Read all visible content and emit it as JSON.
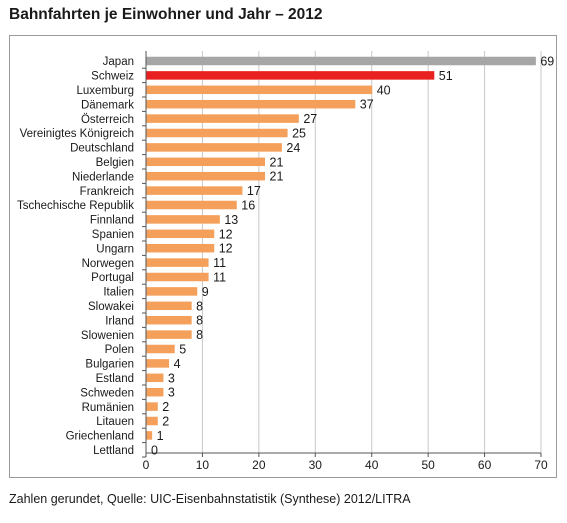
{
  "chart_data": {
    "type": "bar",
    "orientation": "horizontal",
    "title": "Bahnfahrten je Einwohner und Jahr – 2012",
    "categories": [
      "Japan",
      "Schweiz",
      "Luxemburg",
      "Dänemark",
      "Österreich",
      "Vereinigtes Königreich",
      "Deutschland",
      "Belgien",
      "Niederlande",
      "Frankreich",
      "Tschechische Republik",
      "Finnland",
      "Spanien",
      "Ungarn",
      "Norwegen",
      "Portugal",
      "Italien",
      "Slowakei",
      "Irland",
      "Slowenien",
      "Polen",
      "Bulgarien",
      "Estland",
      "Schweden",
      "Rumänien",
      "Litauen",
      "Griechenland",
      "Lettland"
    ],
    "values": [
      69,
      51,
      40,
      37,
      27,
      25,
      24,
      21,
      21,
      17,
      16,
      13,
      12,
      12,
      11,
      11,
      9,
      8,
      8,
      8,
      5,
      4,
      3,
      3,
      2,
      2,
      1,
      0
    ],
    "data_labels": [
      "69",
      "51",
      "40",
      "37",
      "27",
      "25",
      "24",
      "21",
      "21",
      "17",
      "16",
      "13",
      "12",
      "12",
      "11",
      "11",
      "9",
      "8",
      "8",
      "8",
      "5",
      "4",
      "3",
      "3",
      "2",
      "2",
      "1",
      "0"
    ],
    "xlim": [
      0,
      70
    ],
    "xticks": [
      "0",
      "10",
      "20",
      "30",
      "40",
      "50",
      "60",
      "70"
    ],
    "xlabel": "",
    "ylabel": "",
    "grid": "vertical",
    "legend": "none",
    "colors": {
      "default": "#f5a05a",
      "highlight_japan": "#a6a6a6",
      "highlight_schweiz": "#e8201f",
      "grid": "#c8c8c8",
      "axis": "#555555"
    }
  },
  "footnote": "Zahlen gerundet, Quelle: UIC-Eisenbahnstatistik (Synthese) 2012/LITRA"
}
